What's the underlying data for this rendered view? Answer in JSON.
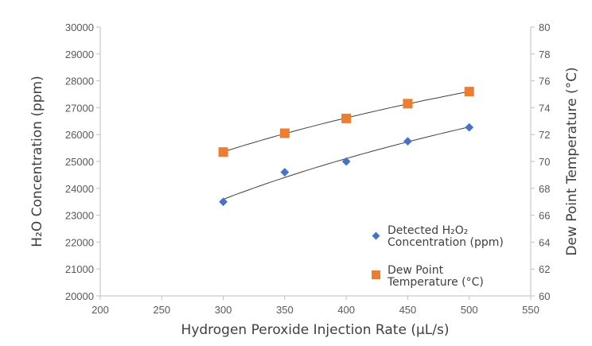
{
  "chart_data": {
    "type": "scatter",
    "xlabel": "Hydrogen Peroxide Injection Rate (µL/s)",
    "ylabel": "H₂O Concentration (ppm)",
    "y2label": "Dew Point Temperature (°C)",
    "xlim": [
      200,
      550
    ],
    "ylim": [
      20000,
      30000
    ],
    "y2lim": [
      60,
      80
    ],
    "xticks": [
      200,
      250,
      300,
      350,
      400,
      450,
      500,
      550
    ],
    "yticks": [
      20000,
      21000,
      22000,
      23000,
      24000,
      25000,
      26000,
      27000,
      28000,
      29000,
      30000
    ],
    "y2ticks": [
      60,
      62,
      64,
      66,
      68,
      70,
      72,
      74,
      76,
      78,
      80
    ],
    "grid": false,
    "legend": "bottom-right inside",
    "trendlines": true,
    "series": [
      {
        "name": "Detected H₂O₂ Concentration (ppm)",
        "axis": "left",
        "marker": "diamond",
        "color": "#4472C4",
        "x": [
          300,
          350,
          400,
          450,
          500
        ],
        "y": [
          23500,
          24600,
          25000,
          25750,
          26270
        ]
      },
      {
        "name": "Dew Point Temperature (°C)",
        "axis": "right",
        "marker": "square",
        "color": "#ED7D31",
        "x": [
          300,
          350,
          400,
          450,
          500
        ],
        "y": [
          70.7,
          72.1,
          73.2,
          74.3,
          75.2
        ]
      }
    ],
    "legend_lines": [
      [
        "Detected H₂O₂",
        "Concentration (ppm)"
      ],
      [
        "Dew Point",
        "Temperature (°C)"
      ]
    ]
  }
}
